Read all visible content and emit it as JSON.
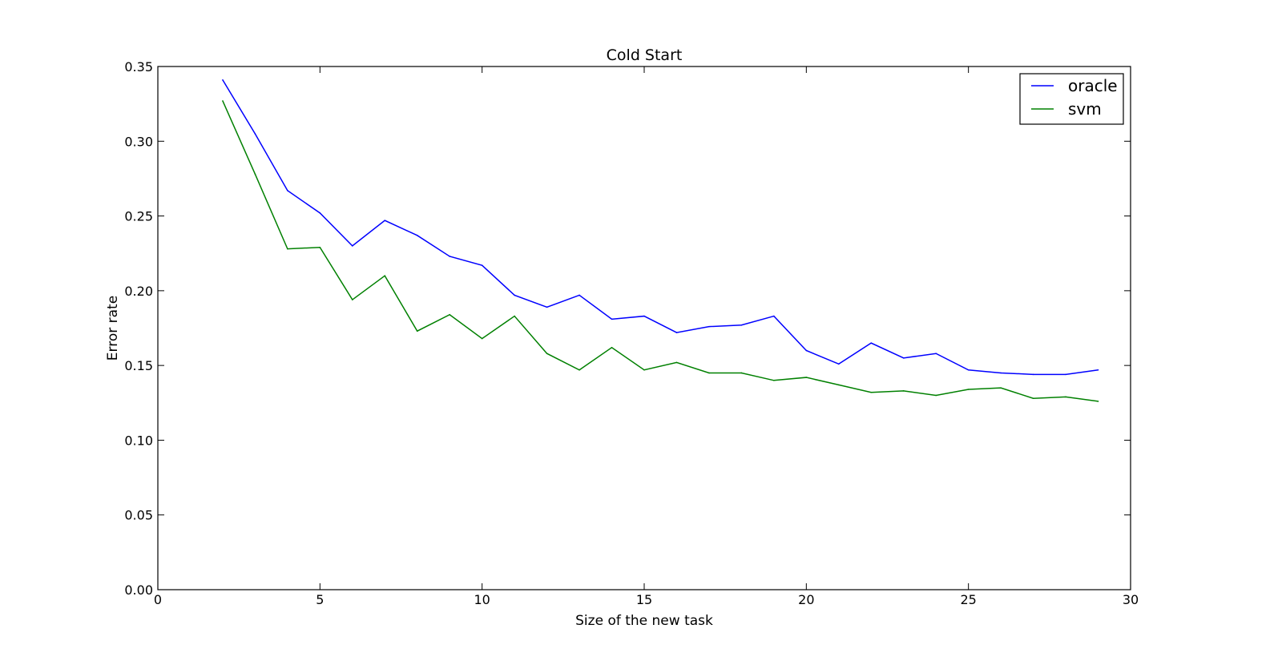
{
  "chart_data": {
    "type": "line",
    "title": "Cold Start",
    "xlabel": "Size of the new task",
    "ylabel": "Error rate",
    "xlim": [
      0,
      30
    ],
    "ylim": [
      0.0,
      0.35
    ],
    "xticks": [
      0,
      5,
      10,
      15,
      20,
      25,
      30
    ],
    "xtick_labels": [
      "0",
      "5",
      "10",
      "15",
      "20",
      "25",
      "30"
    ],
    "yticks": [
      0.0,
      0.05,
      0.1,
      0.15,
      0.2,
      0.25,
      0.3,
      0.35
    ],
    "ytick_labels": [
      "0.00",
      "0.05",
      "0.10",
      "0.15",
      "0.20",
      "0.25",
      "0.30",
      "0.35"
    ],
    "grid": false,
    "legend_position": "top-right",
    "x": [
      2,
      3,
      4,
      5,
      6,
      7,
      8,
      9,
      10,
      11,
      12,
      13,
      14,
      15,
      16,
      17,
      18,
      19,
      20,
      21,
      22,
      23,
      24,
      25,
      26,
      27,
      28,
      29
    ],
    "series": [
      {
        "name": "oracle",
        "color": "#0000ff",
        "values": [
          0.341,
          0.305,
          0.267,
          0.252,
          0.23,
          0.247,
          0.237,
          0.223,
          0.217,
          0.197,
          0.189,
          0.197,
          0.181,
          0.183,
          0.172,
          0.176,
          0.177,
          0.183,
          0.16,
          0.151,
          0.165,
          0.155,
          0.158,
          0.147,
          0.145,
          0.144,
          0.144,
          0.147
        ]
      },
      {
        "name": "svm",
        "color": "#008000",
        "values": [
          0.327,
          0.278,
          0.228,
          0.229,
          0.194,
          0.21,
          0.173,
          0.184,
          0.168,
          0.183,
          0.158,
          0.147,
          0.162,
          0.147,
          0.152,
          0.145,
          0.145,
          0.14,
          0.142,
          0.137,
          0.132,
          0.133,
          0.13,
          0.134,
          0.135,
          0.128,
          0.129,
          0.126
        ]
      }
    ]
  }
}
